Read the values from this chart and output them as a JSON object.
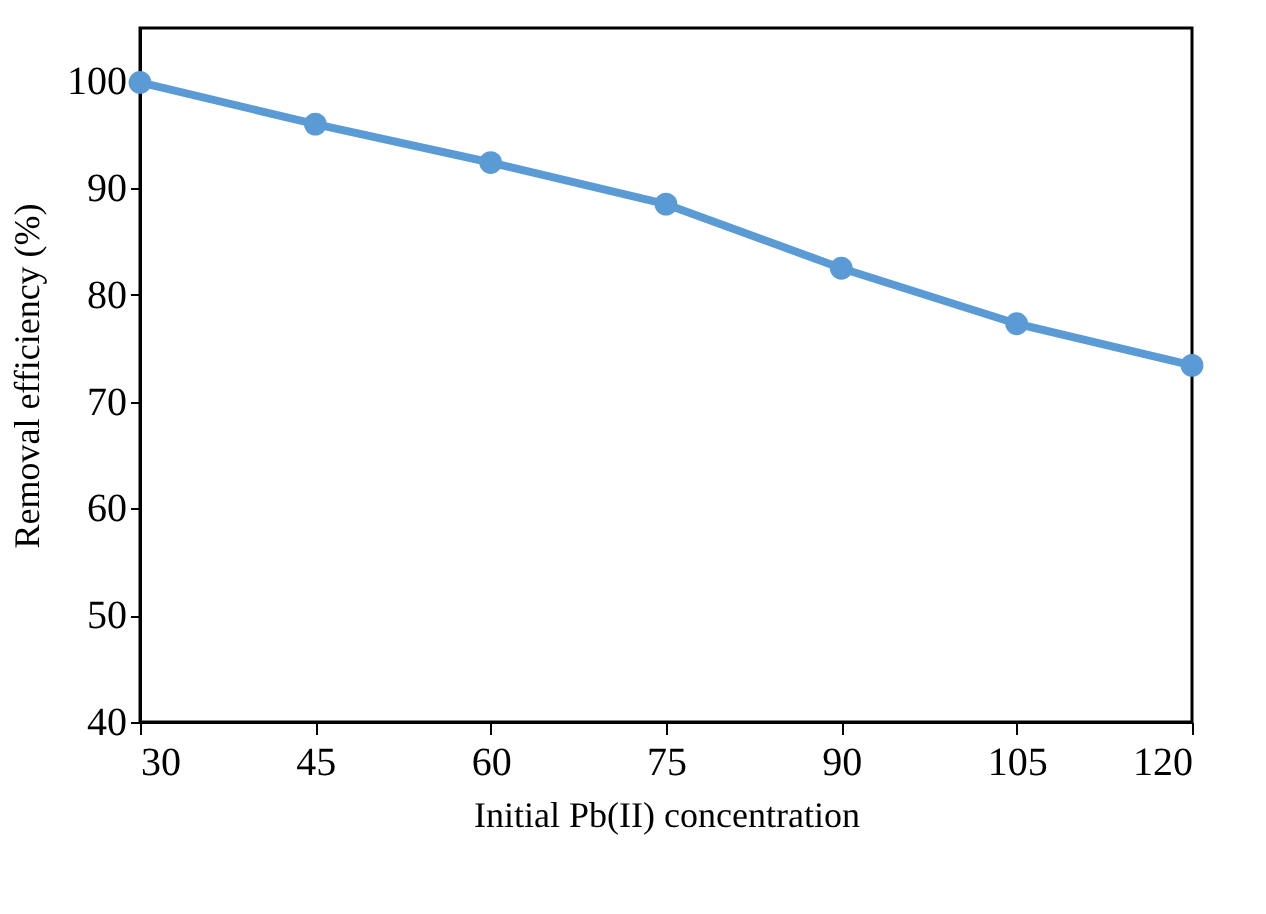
{
  "chart_data": {
    "type": "line",
    "xlabel": "Initial Pb(II) concentration",
    "ylabel": "Removal efficiency (%)",
    "x": [
      30,
      45,
      60,
      75,
      90,
      105,
      120
    ],
    "series": [
      {
        "color": "#5b9bd5",
        "values": [
          99.9,
          96.0,
          92.4,
          88.5,
          82.5,
          77.3,
          73.4
        ]
      }
    ],
    "xlim": [
      30,
      120
    ],
    "xticks": [
      30,
      45,
      60,
      75,
      90,
      105,
      120
    ],
    "ylim": [
      40,
      105
    ],
    "yticks": [
      40,
      50,
      60,
      70,
      80,
      90,
      100
    ],
    "grid": false,
    "marker": "circle",
    "line_style": "solid"
  }
}
